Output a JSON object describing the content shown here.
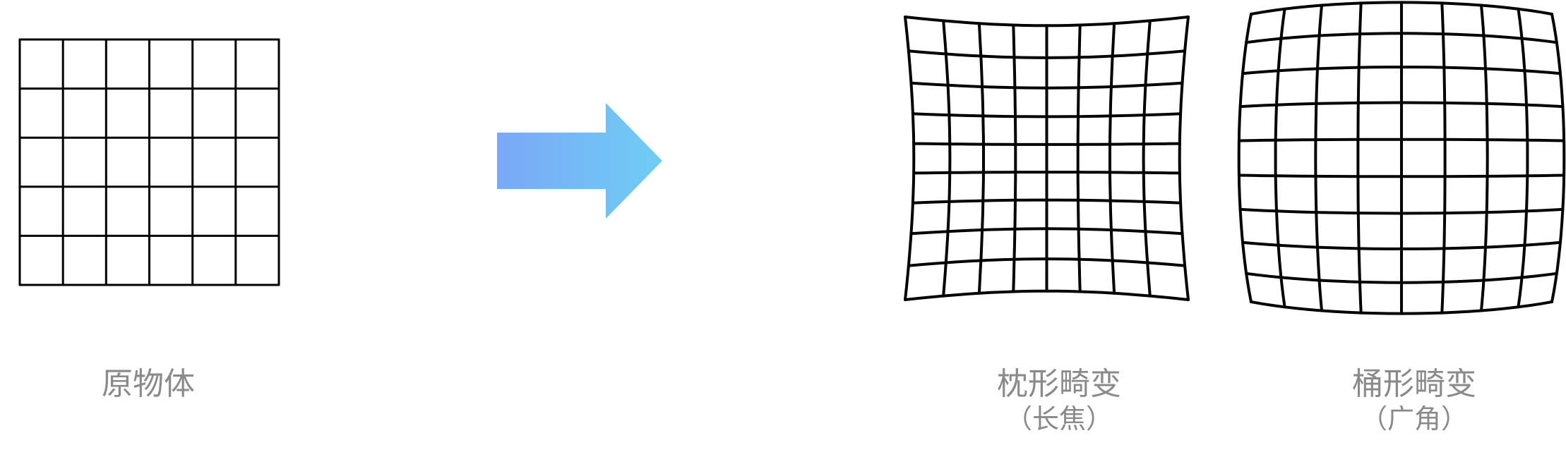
{
  "captions": {
    "original": "原物体",
    "pincushion": {
      "title": "枕形畸变",
      "note": "（长焦）"
    },
    "barrel": {
      "title": "桶形畸变",
      "note": "（广角）"
    }
  },
  "grids": {
    "original": {
      "columns": 6,
      "rows": 5,
      "distortion": "none"
    },
    "pincushion": {
      "columns": 8,
      "rows": 9,
      "distortion": "pincushion"
    },
    "barrel": {
      "columns": 8,
      "rows": 9,
      "distortion": "barrel"
    }
  },
  "colors": {
    "grid_line": "#000000",
    "caption_text": "#8a8a8a",
    "arrow_start": "#7aa8f7",
    "arrow_end": "#6fcdf5"
  },
  "icons": {
    "arrow": "right-arrow-icon"
  }
}
